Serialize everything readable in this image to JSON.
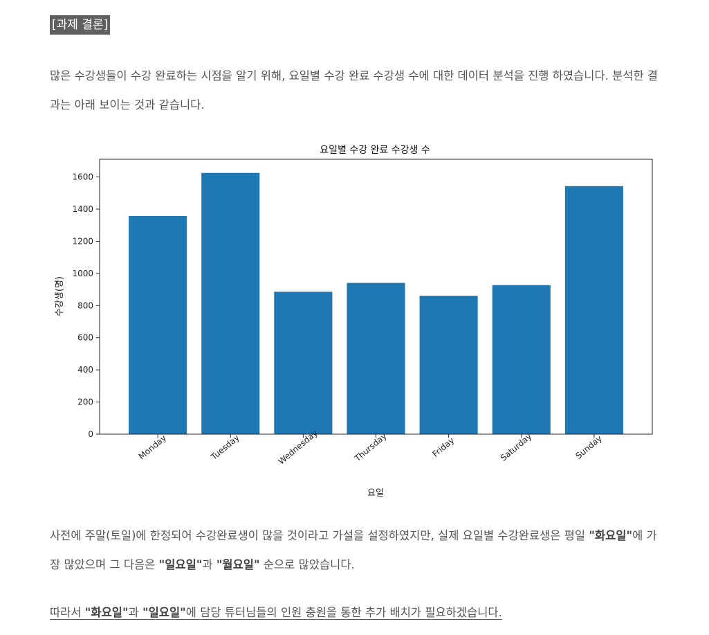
{
  "section_tag": "[과제 결론]",
  "intro_text": "많은 수강생들이 수강 완료하는 시점을 알기 위해, 요일별 수강 완료 수강생 수에 대한 데이터 분석을 진행 하였습니다. 분석한 결과는 아래 보이는 것과 같습니다.",
  "result": {
    "p1": "사전에 주말(토일)에 한정되어 수강완료생이 많을 것이라고 가설을 설정하였지만, 실제 요일별 수강완료생은 평일 ",
    "q1": "\"",
    "b1": "화요일",
    "q2": "\"",
    "p2": "에 가장 많았으며 그 다음은 ",
    "q3": "\"",
    "b2": "일요일",
    "q4": "\"",
    "p3": "과 ",
    "q5": "\"",
    "b3": "월요일",
    "q6": "\"",
    "p4": " 순으로 많았습니다."
  },
  "conclusion": {
    "p1": "따라서 ",
    "q1": "\"",
    "b1": "화요일",
    "q2": "\"",
    "p2": "과 ",
    "q3": "\"",
    "b2": "일요일",
    "q4": "\"",
    "p3": "에 담당 튜터님들의 인원 충원을 통한 추가 배치가 필요하겠습니다."
  },
  "chart_data": {
    "type": "bar",
    "title": "요일별 수강 완료 수강생 수",
    "xlabel": "요일",
    "ylabel": "수강생(명)",
    "categories": [
      "Monday",
      "Tuesday",
      "Wednesday",
      "Thursday",
      "Friday",
      "Saturday",
      "Sunday"
    ],
    "values": [
      1357,
      1625,
      886,
      941,
      861,
      927,
      1543
    ],
    "ylim": [
      0,
      1710
    ],
    "yticks": [
      0,
      200,
      400,
      600,
      800,
      1000,
      1200,
      1400,
      1600
    ],
    "bar_color": "#1f77b4",
    "grid": false,
    "legend": "none"
  }
}
